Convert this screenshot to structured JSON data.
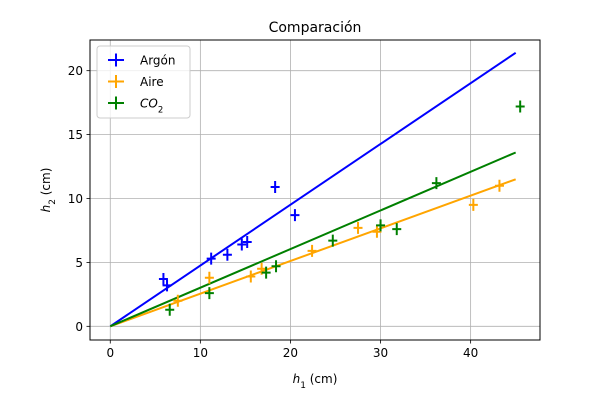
{
  "chart_data": {
    "type": "scatter",
    "title": "Comparación",
    "xlabel_symbol": "h",
    "xlabel_sub": "1",
    "xlabel_unit": " (cm)",
    "ylabel_symbol": "h",
    "ylabel_sub": "2",
    "ylabel_unit": " (cm)",
    "xlim": [
      -2.25,
      47.7
    ],
    "ylim": [
      -1.07,
      22.4
    ],
    "x_ticks": [
      0,
      10,
      20,
      30,
      40
    ],
    "y_ticks": [
      0,
      5,
      10,
      15,
      20
    ],
    "x_tick_labels": [
      "0",
      "10",
      "20",
      "30",
      "40"
    ],
    "y_tick_labels": [
      "0",
      "5",
      "10",
      "15",
      "20"
    ],
    "grid": true,
    "legend_position": "top-left",
    "series": [
      {
        "name": "Argón",
        "legend_italic": false,
        "color": "#0000ff",
        "points": [
          {
            "x": 5.9,
            "y": 3.7
          },
          {
            "x": 6.3,
            "y": 3.2
          },
          {
            "x": 11.2,
            "y": 5.3
          },
          {
            "x": 13.0,
            "y": 5.6
          },
          {
            "x": 14.6,
            "y": 6.4
          },
          {
            "x": 15.2,
            "y": 6.6
          },
          {
            "x": 18.3,
            "y": 10.9
          },
          {
            "x": 20.5,
            "y": 8.7
          }
        ],
        "fit_line": {
          "x": [
            0,
            45
          ],
          "y": [
            0,
            21.4
          ]
        }
      },
      {
        "name": "Aire",
        "legend_italic": false,
        "color": "#ffa500",
        "points": [
          {
            "x": 7.5,
            "y": 2.0
          },
          {
            "x": 11.0,
            "y": 3.8
          },
          {
            "x": 15.6,
            "y": 3.9
          },
          {
            "x": 16.8,
            "y": 4.5
          },
          {
            "x": 22.4,
            "y": 5.9
          },
          {
            "x": 27.5,
            "y": 7.7
          },
          {
            "x": 29.6,
            "y": 7.4
          },
          {
            "x": 40.3,
            "y": 9.5
          },
          {
            "x": 43.2,
            "y": 11.0
          }
        ],
        "fit_line": {
          "x": [
            0,
            45
          ],
          "y": [
            0,
            11.5
          ]
        }
      },
      {
        "name": "CO",
        "name_sub": "2",
        "legend_italic": true,
        "color": "#008000",
        "points": [
          {
            "x": 6.6,
            "y": 1.3
          },
          {
            "x": 11.0,
            "y": 2.6
          },
          {
            "x": 17.3,
            "y": 4.2
          },
          {
            "x": 18.4,
            "y": 4.7
          },
          {
            "x": 24.7,
            "y": 6.7
          },
          {
            "x": 30.0,
            "y": 7.9
          },
          {
            "x": 31.8,
            "y": 7.6
          },
          {
            "x": 36.2,
            "y": 11.2
          },
          {
            "x": 45.5,
            "y": 17.2
          }
        ],
        "fit_line": {
          "x": [
            0,
            45
          ],
          "y": [
            0,
            13.6
          ]
        }
      }
    ]
  }
}
